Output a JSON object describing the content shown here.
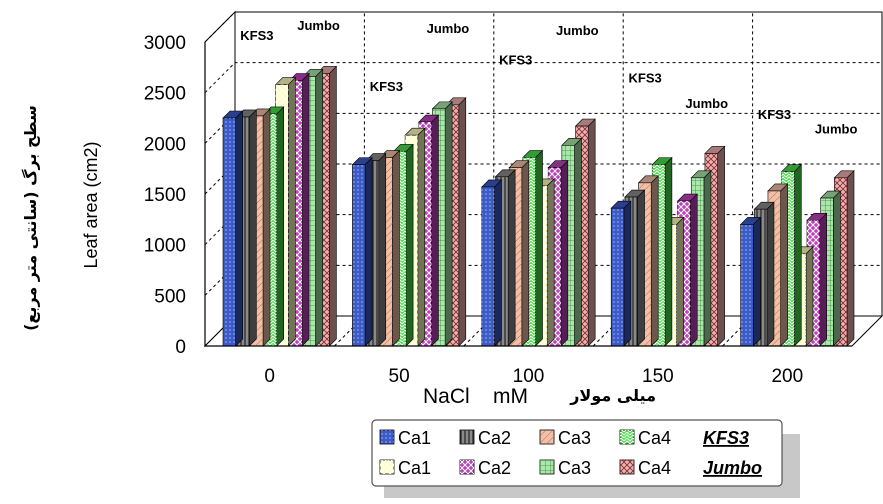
{
  "chart_data": {
    "type": "bar",
    "ylabel": "Leaf area (cm2)",
    "ylabel_fa": "سطح برگ (سانتی متر مربع)",
    "xlabel": "NaCl    mM",
    "xlabel_fa": "میلی مولار",
    "ylim": [
      0,
      3000
    ],
    "yticks": [
      "0",
      "500",
      "1000",
      "1500",
      "2000",
      "2500",
      "3000"
    ],
    "categories": [
      "0",
      "50",
      "100",
      "150",
      "200"
    ],
    "series": [
      {
        "name": "Ca1",
        "group": "KFS3",
        "color": "#3b5bc9",
        "values": [
          2250,
          1790,
          1570,
          1360,
          1200
        ]
      },
      {
        "name": "Ca2",
        "group": "KFS3",
        "color": "#8a8a8a",
        "values": [
          2260,
          1830,
          1670,
          1470,
          1350
        ]
      },
      {
        "name": "Ca3",
        "group": "KFS3",
        "color": "#f2c0a8",
        "values": [
          2270,
          1860,
          1760,
          1610,
          1530
        ]
      },
      {
        "name": "Ca4",
        "group": "KFS3",
        "color": "#48e048",
        "values": [
          2290,
          1920,
          1860,
          1790,
          1720
        ]
      },
      {
        "name": "Ca1",
        "group": "Jumbo",
        "color": "#ffffc0",
        "values": [
          2580,
          2080,
          1580,
          1200,
          910
        ]
      },
      {
        "name": "Ca2",
        "group": "Jumbo",
        "color": "#c040c0",
        "values": [
          2620,
          2210,
          1760,
          1430,
          1240
        ]
      },
      {
        "name": "Ca3",
        "group": "Jumbo",
        "color": "#a8e8a8",
        "values": [
          2660,
          2340,
          1980,
          1660,
          1460
        ]
      },
      {
        "name": "Ca4",
        "group": "Jumbo",
        "color": "#f0b0b0",
        "values": [
          2690,
          2380,
          2170,
          1900,
          1660
        ]
      }
    ],
    "annotations": [
      {
        "text": "KFS3",
        "category": "0",
        "y": 2900
      },
      {
        "text": "Jumbo",
        "category": "0",
        "y": 3000
      },
      {
        "text": "KFS3",
        "category": "50",
        "y": 2400
      },
      {
        "text": "Jumbo",
        "category": "50",
        "y": 2970
      },
      {
        "text": "KFS3",
        "category": "100",
        "y": 2660
      },
      {
        "text": "Jumbo",
        "category": "100",
        "y": 2950
      },
      {
        "text": "KFS3",
        "category": "150",
        "y": 2480
      },
      {
        "text": "Jumbo",
        "category": "150",
        "y": 2230
      },
      {
        "text": "KFS3",
        "category": "200",
        "y": 2120
      },
      {
        "text": "Jumbo",
        "category": "200",
        "y": 1980
      }
    ],
    "legend": {
      "placement": "bottom-right",
      "rows": [
        {
          "group": "KFS3",
          "items": [
            "Ca1",
            "Ca2",
            "Ca3",
            "Ca4"
          ]
        },
        {
          "group": "Jumbo",
          "items": [
            "Ca1",
            "Ca2",
            "Ca3",
            "Ca4"
          ]
        }
      ]
    },
    "grid": true
  }
}
